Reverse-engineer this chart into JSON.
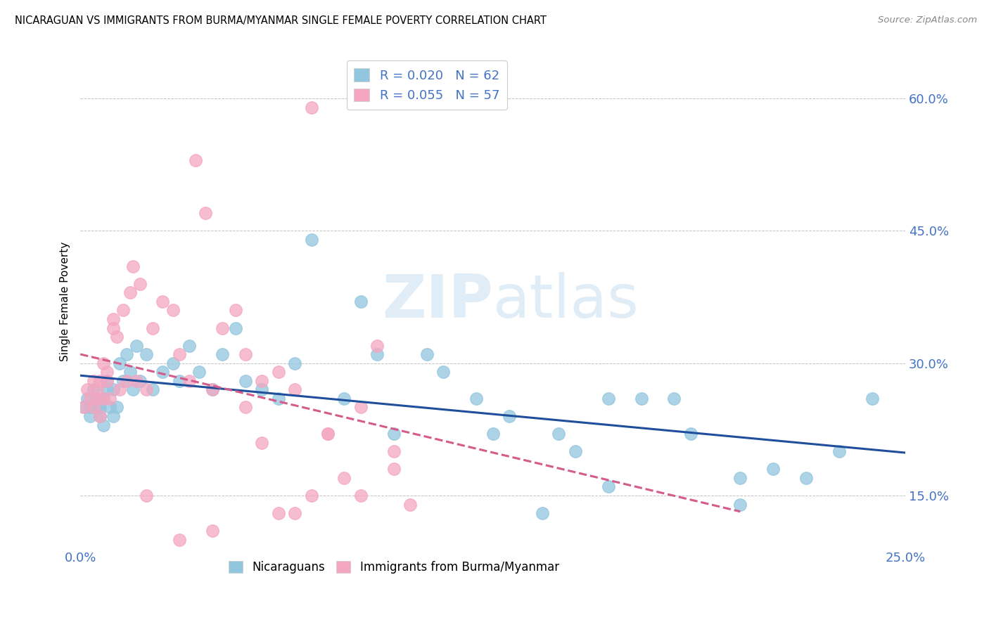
{
  "title": "NICARAGUAN VS IMMIGRANTS FROM BURMA/MYANMAR SINGLE FEMALE POVERTY CORRELATION CHART",
  "source": "Source: ZipAtlas.com",
  "ylabel": "Single Female Poverty",
  "xlim": [
    0.0,
    0.25
  ],
  "ylim": [
    0.09,
    0.65
  ],
  "blue_R": 0.02,
  "blue_N": 62,
  "pink_R": 0.055,
  "pink_N": 57,
  "blue_color": "#92c5de",
  "pink_color": "#f4a6c0",
  "blue_line_color": "#1f4e9c",
  "pink_line_color": "#d45b8a",
  "watermark_color": "#c8dff0",
  "legend_label_blue": "Nicaraguans",
  "legend_label_pink": "Immigrants from Burma/Myanmar",
  "blue_x": [
    0.001,
    0.002,
    0.003,
    0.003,
    0.004,
    0.005,
    0.005,
    0.006,
    0.006,
    0.007,
    0.007,
    0.008,
    0.008,
    0.009,
    0.01,
    0.01,
    0.011,
    0.012,
    0.013,
    0.014,
    0.015,
    0.016,
    0.017,
    0.018,
    0.02,
    0.022,
    0.025,
    0.028,
    0.03,
    0.033,
    0.036,
    0.04,
    0.043,
    0.047,
    0.05,
    0.055,
    0.06,
    0.065,
    0.07,
    0.08,
    0.085,
    0.09,
    0.095,
    0.105,
    0.11,
    0.12,
    0.13,
    0.14,
    0.15,
    0.16,
    0.17,
    0.185,
    0.2,
    0.21,
    0.22,
    0.23,
    0.24,
    0.2,
    0.18,
    0.16,
    0.145,
    0.125
  ],
  "blue_y": [
    0.25,
    0.26,
    0.25,
    0.24,
    0.27,
    0.26,
    0.25,
    0.24,
    0.25,
    0.23,
    0.26,
    0.28,
    0.27,
    0.25,
    0.24,
    0.27,
    0.25,
    0.3,
    0.28,
    0.31,
    0.29,
    0.27,
    0.32,
    0.28,
    0.31,
    0.27,
    0.29,
    0.3,
    0.28,
    0.32,
    0.29,
    0.27,
    0.31,
    0.34,
    0.28,
    0.27,
    0.26,
    0.3,
    0.44,
    0.26,
    0.37,
    0.31,
    0.22,
    0.31,
    0.29,
    0.26,
    0.24,
    0.13,
    0.2,
    0.26,
    0.26,
    0.22,
    0.17,
    0.18,
    0.17,
    0.2,
    0.26,
    0.14,
    0.26,
    0.16,
    0.22,
    0.22
  ],
  "pink_x": [
    0.001,
    0.002,
    0.003,
    0.004,
    0.004,
    0.005,
    0.005,
    0.006,
    0.006,
    0.007,
    0.007,
    0.008,
    0.008,
    0.009,
    0.01,
    0.01,
    0.011,
    0.012,
    0.013,
    0.014,
    0.015,
    0.016,
    0.017,
    0.018,
    0.02,
    0.022,
    0.025,
    0.028,
    0.03,
    0.033,
    0.035,
    0.038,
    0.04,
    0.043,
    0.047,
    0.05,
    0.055,
    0.06,
    0.065,
    0.07,
    0.075,
    0.08,
    0.085,
    0.09,
    0.095,
    0.1,
    0.05,
    0.06,
    0.07,
    0.04,
    0.03,
    0.02,
    0.055,
    0.065,
    0.075,
    0.085,
    0.095
  ],
  "pink_y": [
    0.25,
    0.27,
    0.26,
    0.28,
    0.25,
    0.26,
    0.27,
    0.24,
    0.28,
    0.26,
    0.3,
    0.28,
    0.29,
    0.26,
    0.34,
    0.35,
    0.33,
    0.27,
    0.36,
    0.28,
    0.38,
    0.41,
    0.28,
    0.39,
    0.27,
    0.34,
    0.37,
    0.36,
    0.31,
    0.28,
    0.53,
    0.47,
    0.27,
    0.34,
    0.36,
    0.31,
    0.28,
    0.29,
    0.27,
    0.59,
    0.22,
    0.17,
    0.25,
    0.32,
    0.2,
    0.14,
    0.25,
    0.13,
    0.15,
    0.11,
    0.1,
    0.15,
    0.21,
    0.13,
    0.22,
    0.15,
    0.18
  ]
}
